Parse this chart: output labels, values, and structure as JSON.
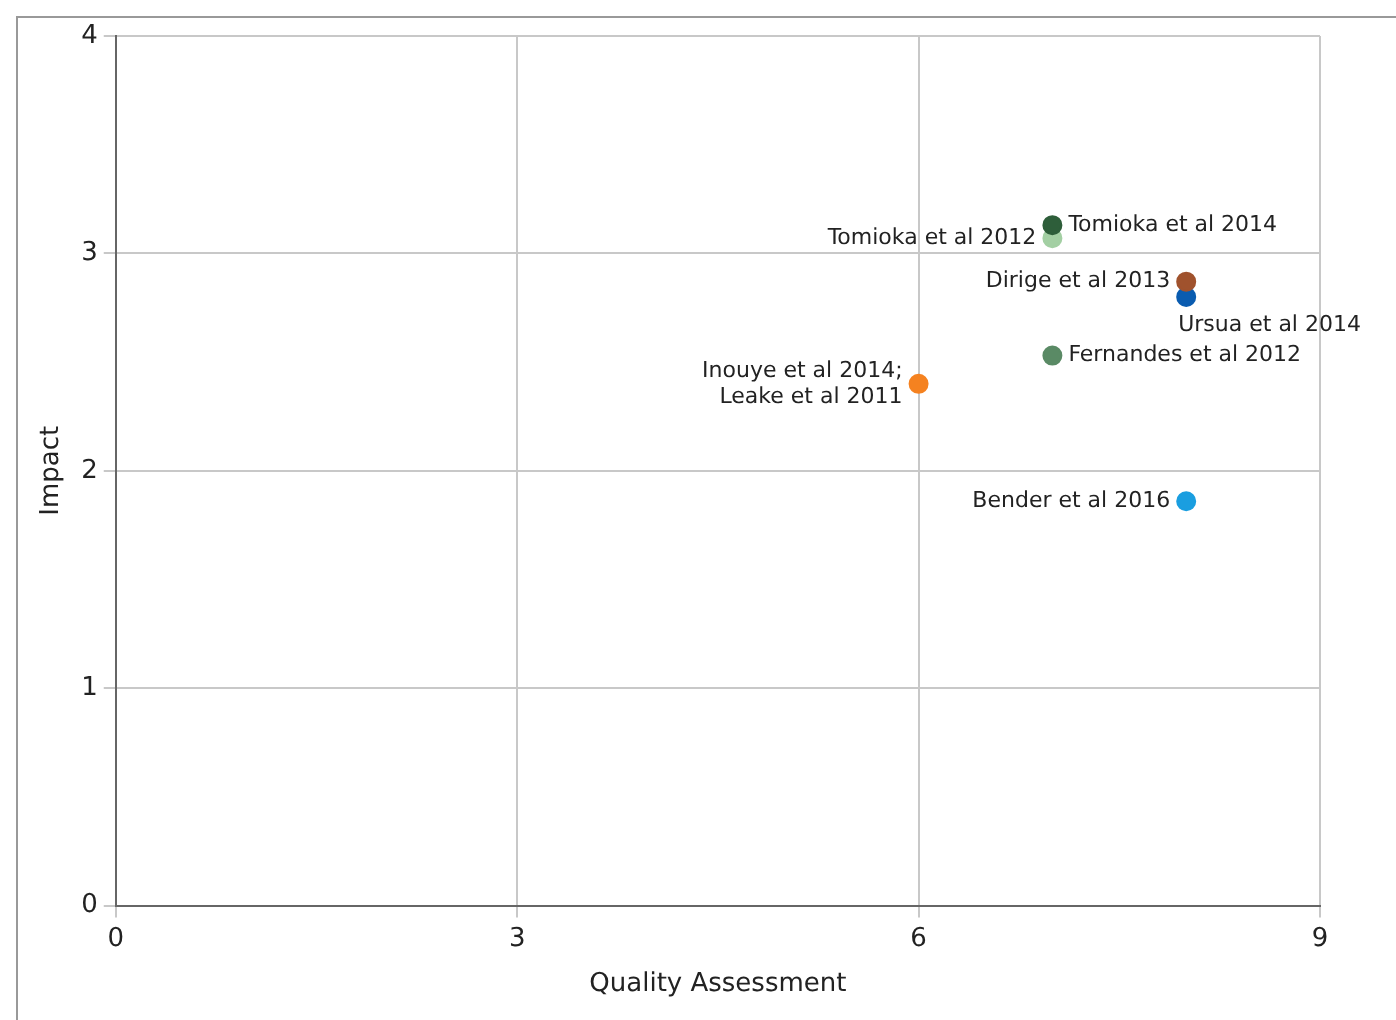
{
  "chart_data": {
    "type": "scatter",
    "xlabel": "Quality Assessment",
    "ylabel": "Impact",
    "xlim": [
      0,
      9
    ],
    "xticks": [
      0,
      3,
      6,
      9
    ],
    "ylim": [
      0,
      4
    ],
    "yticks": [
      0,
      1,
      2,
      3,
      4
    ],
    "grid": true,
    "legend": false,
    "marker": "circle",
    "series": [
      {
        "name": "Tomioka et al 2014",
        "color": "#2e5e3a",
        "x": [
          7
        ],
        "values": [
          3.13
        ]
      },
      {
        "name": "Tomioka et al 2012",
        "color": "#a3cfa3",
        "x": [
          7
        ],
        "values": [
          3.07
        ]
      },
      {
        "name": "Dirige et al 2013",
        "color": "#a0522d",
        "x": [
          8
        ],
        "values": [
          2.87
        ]
      },
      {
        "name": "Ursua et al 2014",
        "color": "#0a5cb0",
        "x": [
          8
        ],
        "values": [
          2.8
        ]
      },
      {
        "name": "Fernandes et al 2012",
        "color": "#5a8a65",
        "x": [
          7
        ],
        "values": [
          2.53
        ]
      },
      {
        "name": "Inouye et al 2014; Leake et al 2011",
        "color": "#f58220",
        "x": [
          6
        ],
        "values": [
          2.4
        ]
      },
      {
        "name": "Bender et al 2016",
        "color": "#1a9ee0",
        "x": [
          8
        ],
        "values": [
          1.86
        ]
      }
    ]
  }
}
